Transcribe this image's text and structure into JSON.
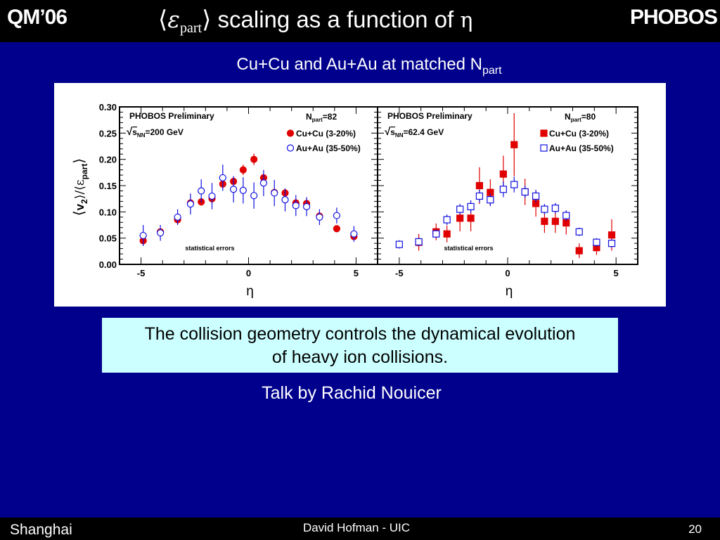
{
  "header": {
    "left": "QM’06",
    "right": "PHOBOS",
    "title_open": "⟨",
    "title_eps": "ε",
    "title_sub": "part",
    "title_close": "⟩",
    "title_text": " scaling as a function of ",
    "title_eta": "η"
  },
  "subtitle": {
    "main": "Cu+Cu and Au+Au at matched N",
    "sub": "part"
  },
  "note": {
    "line1": "The collision geometry controls the dynamical evolution",
    "line2": "of heavy ion collisions."
  },
  "talk": "Talk by Rachid Nouicer",
  "footer": {
    "left": "Shanghai",
    "center": "David Hofman - UIC",
    "right": "20"
  },
  "colors": {
    "background": "#00008c",
    "bar": "#000000",
    "cucu": "#e00000",
    "auau": "#1010e0",
    "notebox": "#ccffff"
  },
  "chart_data": [
    {
      "type": "scatter",
      "panel_label": "PHOBOS Preliminary",
      "energy_prefix": "√",
      "energy_s": "s",
      "energy_sub": "NN",
      "energy_value": "=200 GeV",
      "npart_prefix": "N",
      "npart_sub": "part",
      "npart_value": "=82",
      "footnote": "statistical errors",
      "xlabel": "η",
      "ylabel_parts": [
        "⟨",
        "v",
        "2",
        "⟩/⟨",
        "ε",
        "part",
        "⟩"
      ],
      "xlim": [
        -6,
        6
      ],
      "ylim": [
        0,
        0.3
      ],
      "xticks": [
        "-5",
        "0",
        "5"
      ],
      "yticks": [
        "0.00",
        "0.05",
        "0.10",
        "0.15",
        "0.20",
        "0.25",
        "0.30"
      ],
      "series": [
        {
          "name": "Cu+Cu (3-20%)",
          "marker": "filled-circle",
          "x": [
            -4.9,
            -4.1,
            -3.3,
            -2.7,
            -2.2,
            -1.7,
            -1.2,
            -0.7,
            -0.25,
            0.25,
            0.7,
            1.2,
            1.7,
            2.2,
            2.7,
            3.3,
            4.1,
            4.9
          ],
          "y": [
            0.045,
            0.062,
            0.085,
            0.117,
            0.119,
            0.125,
            0.153,
            0.158,
            0.18,
            0.2,
            0.165,
            0.137,
            0.136,
            0.117,
            0.116,
            0.092,
            0.068,
            0.053
          ],
          "err": [
            0.006,
            0.006,
            0.006,
            0.007,
            0.007,
            0.007,
            0.008,
            0.009,
            0.01,
            0.011,
            0.009,
            0.008,
            0.007,
            0.007,
            0.007,
            0.006,
            0.006,
            0.006
          ]
        },
        {
          "name": "Au+Au (35-50%)",
          "marker": "open-circle",
          "x": [
            -4.9,
            -4.1,
            -3.3,
            -2.7,
            -2.2,
            -1.7,
            -1.2,
            -0.7,
            -0.25,
            0.25,
            0.7,
            1.2,
            1.7,
            2.2,
            2.7,
            3.3,
            4.1,
            4.9
          ],
          "y": [
            0.055,
            0.06,
            0.09,
            0.115,
            0.14,
            0.13,
            0.165,
            0.143,
            0.141,
            0.131,
            0.155,
            0.136,
            0.123,
            0.112,
            0.11,
            0.09,
            0.093,
            0.058
          ],
          "err": [
            0.02,
            0.015,
            0.015,
            0.02,
            0.022,
            0.025,
            0.025,
            0.025,
            0.025,
            0.025,
            0.025,
            0.025,
            0.022,
            0.02,
            0.018,
            0.015,
            0.015,
            0.015
          ]
        }
      ]
    },
    {
      "type": "scatter",
      "panel_label": "PHOBOS Preliminary",
      "energy_prefix": "√",
      "energy_s": "s",
      "energy_sub": "NN",
      "energy_value": "=62.4 GeV",
      "npart_prefix": "N",
      "npart_sub": "part",
      "npart_value": "=80",
      "footnote": "statistical errors",
      "xlabel": "η",
      "xlim": [
        -6,
        6
      ],
      "ylim": [
        0,
        0.3
      ],
      "xticks": [
        "-5",
        "0",
        "5"
      ],
      "series": [
        {
          "name": "Cu+Cu (3-20%)",
          "marker": "filled-square",
          "x": [
            -4.1,
            -3.3,
            -2.8,
            -2.2,
            -1.7,
            -1.3,
            -0.8,
            -0.2,
            0.3,
            0.8,
            1.3,
            1.7,
            2.2,
            2.7,
            3.3,
            4.1,
            4.8
          ],
          "y": [
            0.042,
            0.062,
            0.058,
            0.088,
            0.088,
            0.15,
            0.137,
            0.172,
            0.228,
            0.138,
            0.116,
            0.082,
            0.082,
            0.079,
            0.026,
            0.032,
            0.056
          ],
          "err": [
            0.016,
            0.016,
            0.016,
            0.025,
            0.025,
            0.035,
            0.025,
            0.035,
            0.06,
            0.025,
            0.025,
            0.022,
            0.022,
            0.022,
            0.014,
            0.014,
            0.03
          ]
        },
        {
          "name": "Au+Au (35-50%)",
          "marker": "open-square",
          "x": [
            -5.0,
            -4.1,
            -3.3,
            -2.8,
            -2.2,
            -1.7,
            -1.3,
            -0.8,
            -0.2,
            0.3,
            0.8,
            1.3,
            1.7,
            2.2,
            2.7,
            3.3,
            4.1,
            4.8
          ],
          "y": [
            0.038,
            0.043,
            0.058,
            0.085,
            0.105,
            0.11,
            0.13,
            0.123,
            0.143,
            0.152,
            0.138,
            0.13,
            0.105,
            0.107,
            0.093,
            0.062,
            0.042,
            0.04
          ],
          "err": [
            0.008,
            0.008,
            0.008,
            0.01,
            0.01,
            0.012,
            0.012,
            0.012,
            0.015,
            0.015,
            0.012,
            0.012,
            0.01,
            0.01,
            0.01,
            0.008,
            0.008,
            0.008
          ]
        }
      ]
    }
  ]
}
